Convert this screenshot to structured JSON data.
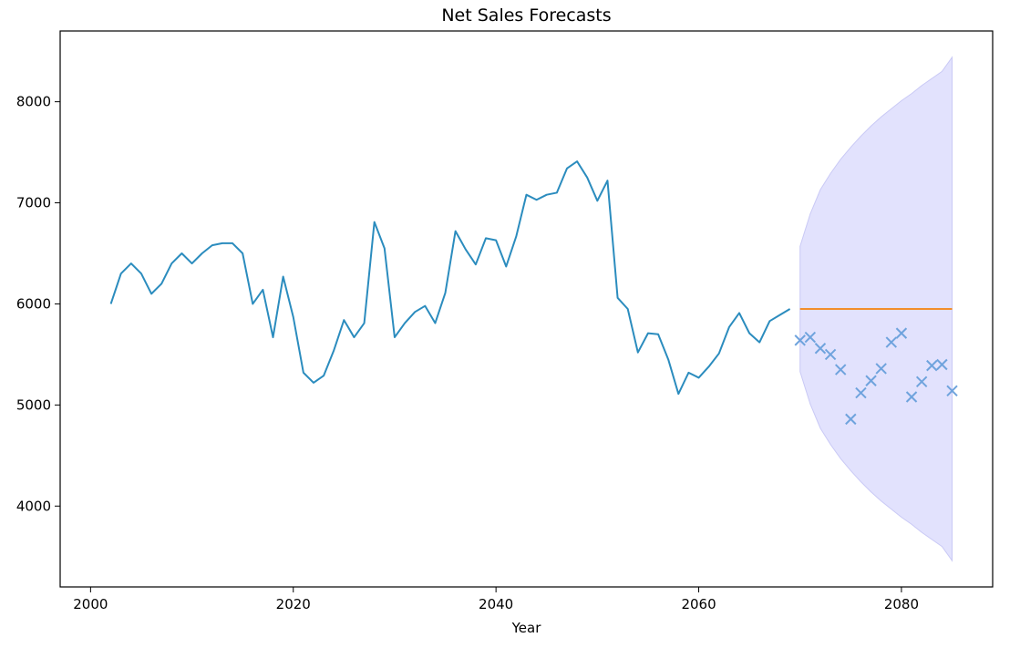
{
  "chart_data": {
    "type": "line",
    "title": "Net Sales Forecasts",
    "xlabel": "Year",
    "ylabel": "",
    "xlim": [
      1997,
      2089
    ],
    "ylim": [
      3200,
      8700
    ],
    "xticks": [
      2000,
      2020,
      2040,
      2060,
      2080
    ],
    "yticks": [
      4000,
      5000,
      6000,
      7000,
      8000
    ],
    "grid": false,
    "legend": "none",
    "series": [
      {
        "kind": "line",
        "color": "#2b8cbe",
        "points": [
          [
            2002,
            6000
          ],
          [
            2003,
            6300
          ],
          [
            2004,
            6400
          ],
          [
            2005,
            6300
          ],
          [
            2006,
            6100
          ],
          [
            2007,
            6200
          ],
          [
            2008,
            6400
          ],
          [
            2009,
            6500
          ],
          [
            2010,
            6400
          ],
          [
            2011,
            6500
          ],
          [
            2012,
            6580
          ],
          [
            2013,
            6600
          ],
          [
            2014,
            6600
          ],
          [
            2015,
            6500
          ],
          [
            2016,
            6000
          ],
          [
            2017,
            6140
          ],
          [
            2018,
            5670
          ],
          [
            2019,
            6270
          ],
          [
            2020,
            5870
          ],
          [
            2021,
            5320
          ],
          [
            2022,
            5220
          ],
          [
            2023,
            5290
          ],
          [
            2024,
            5540
          ],
          [
            2025,
            5840
          ],
          [
            2026,
            5670
          ],
          [
            2027,
            5810
          ],
          [
            2028,
            6810
          ],
          [
            2029,
            6550
          ],
          [
            2030,
            5670
          ],
          [
            2031,
            5810
          ],
          [
            2032,
            5920
          ],
          [
            2033,
            5980
          ],
          [
            2034,
            5810
          ],
          [
            2035,
            6110
          ],
          [
            2036,
            6720
          ],
          [
            2037,
            6540
          ],
          [
            2038,
            6390
          ],
          [
            2039,
            6650
          ],
          [
            2040,
            6630
          ],
          [
            2041,
            6370
          ],
          [
            2042,
            6670
          ],
          [
            2043,
            7080
          ],
          [
            2044,
            7030
          ],
          [
            2045,
            7080
          ],
          [
            2046,
            7100
          ],
          [
            2047,
            7340
          ],
          [
            2048,
            7410
          ],
          [
            2049,
            7250
          ],
          [
            2050,
            7020
          ],
          [
            2051,
            7220
          ],
          [
            2052,
            6060
          ],
          [
            2053,
            5950
          ],
          [
            2054,
            5520
          ],
          [
            2055,
            5710
          ],
          [
            2056,
            5700
          ],
          [
            2057,
            5450
          ],
          [
            2058,
            5110
          ],
          [
            2059,
            5320
          ],
          [
            2060,
            5270
          ],
          [
            2061,
            5380
          ],
          [
            2062,
            5510
          ],
          [
            2063,
            5770
          ],
          [
            2064,
            5910
          ],
          [
            2065,
            5710
          ],
          [
            2066,
            5620
          ],
          [
            2067,
            5830
          ],
          [
            2068,
            5890
          ],
          [
            2069,
            5950
          ]
        ]
      },
      {
        "kind": "line",
        "color": "#f28e2b",
        "points": [
          [
            2070,
            5950
          ],
          [
            2085,
            5950
          ]
        ]
      },
      {
        "kind": "scatter",
        "marker": "x",
        "color": "#6fa3dd",
        "points": [
          [
            2070,
            5640
          ],
          [
            2071,
            5670
          ],
          [
            2072,
            5560
          ],
          [
            2073,
            5500
          ],
          [
            2074,
            5350
          ],
          [
            2075,
            4860
          ],
          [
            2076,
            5120
          ],
          [
            2077,
            5240
          ],
          [
            2078,
            5360
          ],
          [
            2079,
            5620
          ],
          [
            2080,
            5710
          ],
          [
            2081,
            5080
          ],
          [
            2082,
            5230
          ],
          [
            2083,
            5390
          ],
          [
            2084,
            5400
          ],
          [
            2085,
            5140
          ]
        ]
      },
      {
        "kind": "band",
        "color": "#e2e2fd",
        "edge_color": "#c9c9f5",
        "x": [
          2070,
          2071,
          2072,
          2073,
          2074,
          2075,
          2076,
          2077,
          2078,
          2079,
          2080,
          2081,
          2082,
          2083,
          2084,
          2085
        ],
        "upper": [
          6570,
          6890,
          7130,
          7290,
          7430,
          7550,
          7660,
          7760,
          7850,
          7930,
          8010,
          8080,
          8160,
          8230,
          8300,
          8440
        ],
        "lower": [
          5330,
          5010,
          4770,
          4610,
          4470,
          4350,
          4240,
          4140,
          4050,
          3970,
          3890,
          3820,
          3740,
          3670,
          3600,
          3460
        ]
      }
    ]
  }
}
